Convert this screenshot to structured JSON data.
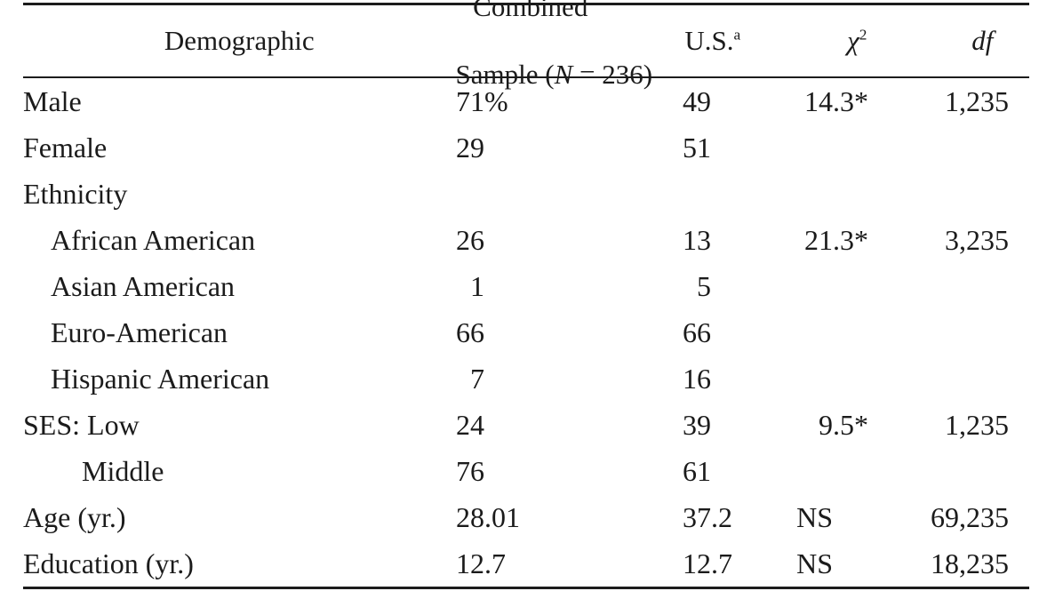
{
  "table": {
    "header": {
      "demographic": "Demographic",
      "combined_line1": "Combined",
      "combined_pre": "Sample (",
      "combined_n": "N",
      "combined_post": " = 236)",
      "us": "U.S.",
      "us_sup": "a",
      "chi": "χ",
      "chi_sup": "2",
      "df": "df"
    },
    "rows": [
      {
        "label": "Male",
        "indent": 0,
        "combined": [
          "71",
          "%"
        ],
        "us": [
          "49",
          ""
        ],
        "chi": [
          "14",
          ".3*"
        ],
        "df": "1,235"
      },
      {
        "label": "Female",
        "indent": 0,
        "combined": [
          "29",
          ""
        ],
        "us": [
          "51",
          ""
        ],
        "chi": [
          "",
          ""
        ],
        "df": ""
      },
      {
        "label": "Ethnicity",
        "indent": 0,
        "combined": [
          "",
          ""
        ],
        "us": [
          "",
          ""
        ],
        "chi": [
          "",
          ""
        ],
        "df": ""
      },
      {
        "label": "African American",
        "indent": 1,
        "combined": [
          "26",
          ""
        ],
        "us": [
          "13",
          ""
        ],
        "chi": [
          "21",
          ".3*"
        ],
        "df": "3,235"
      },
      {
        "label": "Asian American",
        "indent": 1,
        "combined": [
          "1",
          ""
        ],
        "us": [
          "5",
          ""
        ],
        "chi": [
          "",
          ""
        ],
        "df": ""
      },
      {
        "label": "Euro-American",
        "indent": 1,
        "combined": [
          "66",
          ""
        ],
        "us": [
          "66",
          ""
        ],
        "chi": [
          "",
          ""
        ],
        "df": ""
      },
      {
        "label": "Hispanic American",
        "indent": 1,
        "combined": [
          "7",
          ""
        ],
        "us": [
          "16",
          ""
        ],
        "chi": [
          "",
          ""
        ],
        "df": ""
      },
      {
        "label": "SES: Low",
        "indent": 0,
        "combined": [
          "24",
          ""
        ],
        "us": [
          "39",
          ""
        ],
        "chi": [
          "9",
          ".5*"
        ],
        "df": "1,235"
      },
      {
        "label": "Middle",
        "indent": 2,
        "combined": [
          "76",
          ""
        ],
        "us": [
          "61",
          ""
        ],
        "chi": [
          "",
          ""
        ],
        "df": ""
      },
      {
        "label": "Age (yr.)",
        "indent": 0,
        "combined": [
          "28",
          ".01"
        ],
        "us": [
          "37",
          ".2"
        ],
        "chi": [
          "NS",
          ""
        ],
        "df": "69,235"
      },
      {
        "label": "Education (yr.)",
        "indent": 0,
        "combined": [
          "12",
          ".7"
        ],
        "us": [
          "12",
          ".7"
        ],
        "chi": [
          "NS",
          ""
        ],
        "df": "18,235"
      }
    ]
  }
}
